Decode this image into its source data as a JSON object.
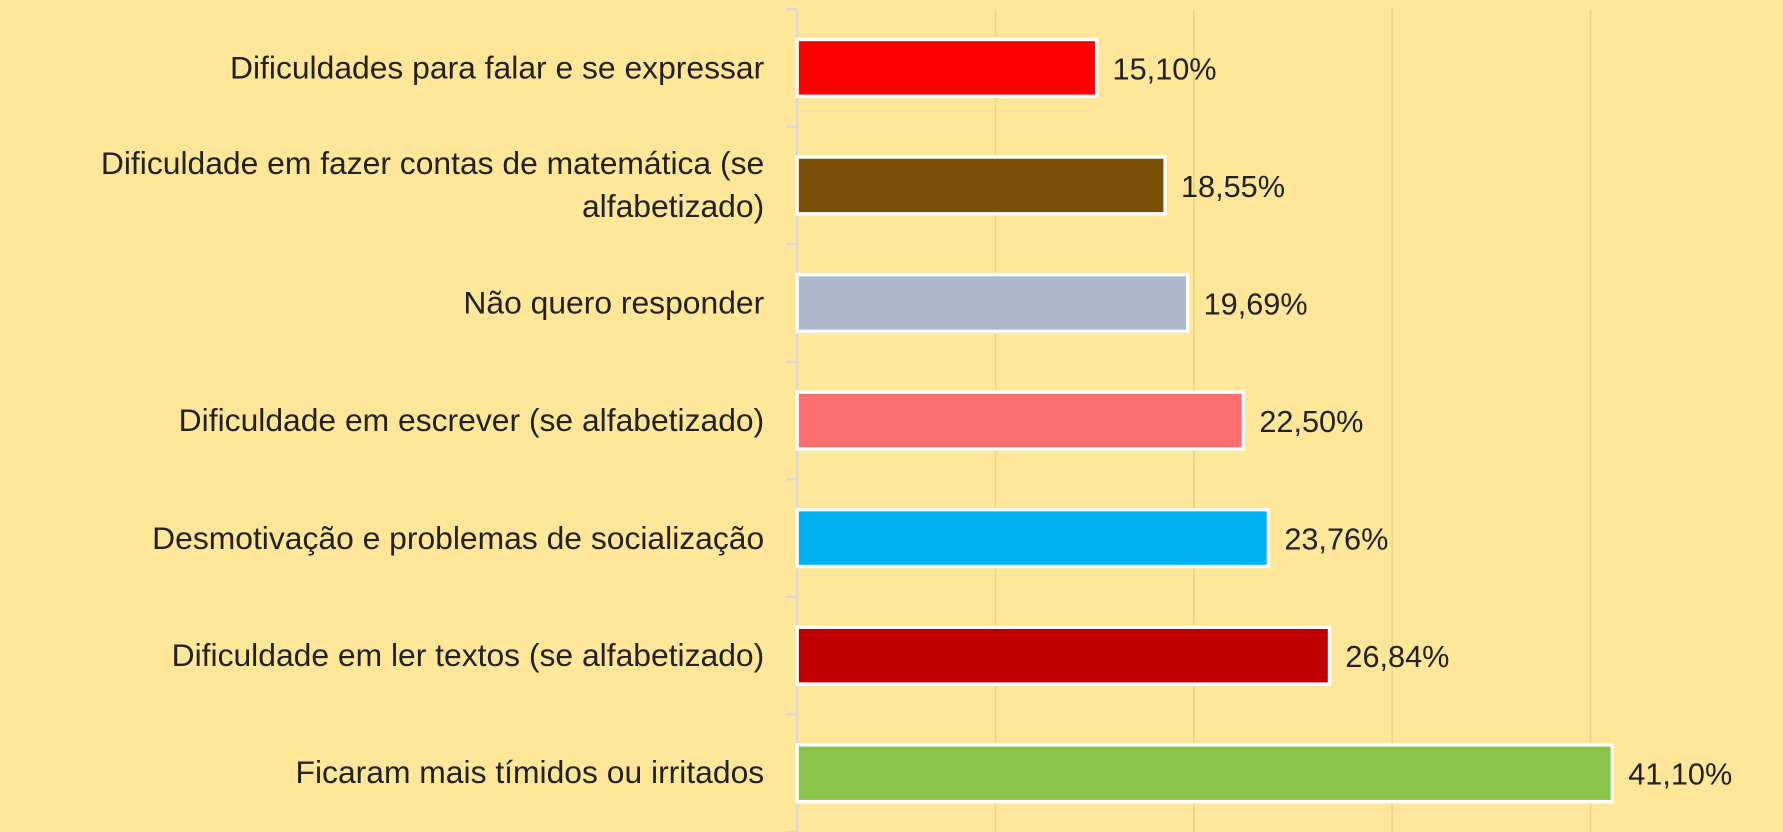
{
  "chart_data": {
    "type": "bar",
    "orientation": "horizontal",
    "categories": [
      "Dificuldades para falar e se expressar",
      "Dificuldade em fazer contas de matemática (se alfabetizado)",
      "Não quero responder",
      "Dificuldade em escrever (se alfabetizado)",
      "Desmotivação e problemas de socialização",
      "Dificuldade em ler textos (se alfabetizado)",
      "Ficaram mais tímidos ou irritados"
    ],
    "values": [
      15.1,
      18.55,
      19.69,
      22.5,
      23.76,
      26.84,
      41.1
    ],
    "value_labels": [
      "15,10%",
      "18,55%",
      "19,69%",
      "22,50%",
      "23,76%",
      "26,84%",
      "41,10%"
    ],
    "colors": [
      "#ff0000",
      "#7b4f06",
      "#adb9ca",
      "#ff6f6f",
      "#00b0f0",
      "#c00000",
      "#8bc34a"
    ],
    "xlim": [
      0,
      50
    ],
    "xticks": [
      0,
      10,
      20,
      30,
      40
    ],
    "grid": true
  }
}
